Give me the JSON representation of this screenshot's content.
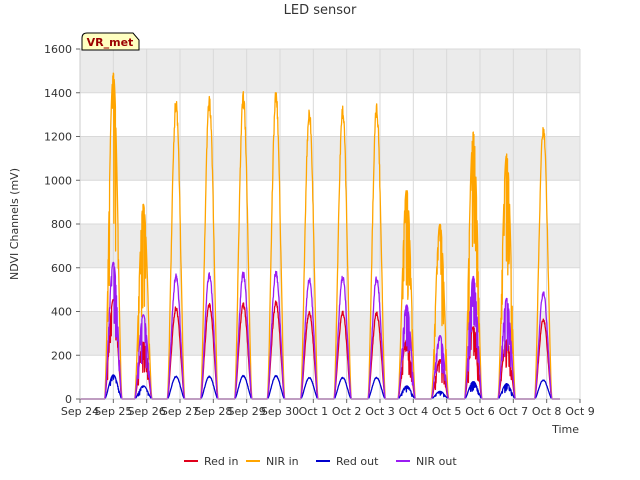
{
  "chart_data": {
    "type": "line",
    "title": "LED sensor",
    "xlabel": "Time",
    "ylabel": "NDVI Channels (mV)",
    "badge": "VR_met",
    "ylim": [
      0,
      1600
    ],
    "yticks": [
      0,
      200,
      400,
      600,
      800,
      1000,
      1200,
      1400,
      1600
    ],
    "xticks": [
      "Sep 24",
      "Sep 25",
      "Sep 26",
      "Sep 27",
      "Sep 28",
      "Sep 29",
      "Sep 30",
      "Oct 1",
      "Oct 2",
      "Oct 3",
      "Oct 4",
      "Oct 5",
      "Oct 6",
      "Oct 7",
      "Oct 8",
      "Oct 9"
    ],
    "xlim_days": [
      0,
      15
    ],
    "grid": true,
    "legend_position": "bottom",
    "daily_peaks": {
      "days": [
        "Sep 25",
        "Sep 26",
        "Sep 27",
        "Sep 28",
        "Sep 29",
        "Sep 30",
        "Oct 1",
        "Oct 2",
        "Oct 3",
        "Oct 4",
        "Oct 5",
        "Oct 6",
        "Oct 7",
        "Oct 8"
      ],
      "peak_time_days": [
        1.0,
        1.9,
        2.88,
        3.88,
        4.9,
        5.88,
        6.88,
        7.88,
        8.9,
        9.8,
        10.8,
        11.8,
        12.8,
        13.9
      ],
      "nir_in": [
        1490,
        890,
        1380,
        1390,
        1405,
        1415,
        1340,
        1350,
        1355,
        960,
        800,
        1220,
        1120,
        1260
      ],
      "red_in": [
        455,
        260,
        425,
        440,
        440,
        450,
        405,
        405,
        400,
        270,
        180,
        330,
        270,
        370
      ],
      "red_out": [
        110,
        60,
        105,
        105,
        108,
        108,
        100,
        100,
        100,
        60,
        35,
        80,
        70,
        88
      ],
      "nir_out": [
        625,
        385,
        575,
        580,
        585,
        590,
        560,
        570,
        565,
        430,
        290,
        560,
        460,
        495
      ]
    },
    "series": [
      {
        "name": "Red in",
        "key": "red_in",
        "color": "#e0001b"
      },
      {
        "name": "NIR in",
        "key": "nir_in",
        "color": "#ffa500"
      },
      {
        "name": "Red out",
        "key": "red_out",
        "color": "#0000cd"
      },
      {
        "name": "NIR out",
        "key": "nir_out",
        "color": "#9a1cf2"
      }
    ]
  }
}
